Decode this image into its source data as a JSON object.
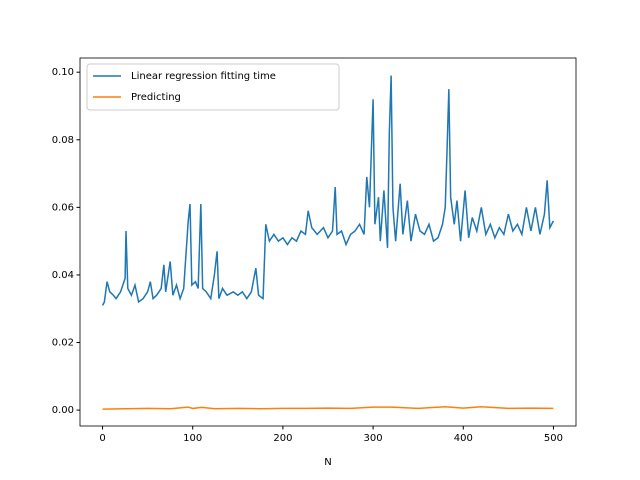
{
  "chart_data": {
    "type": "line",
    "xlabel": "N",
    "legend": "upper left",
    "xlim": [
      -25,
      525
    ],
    "xticks": [
      0,
      100,
      200,
      300,
      400,
      500
    ],
    "ylim": [
      -0.0047,
      0.1042
    ],
    "yticks": [
      {
        "value": 0,
        "label": "0.00"
      },
      {
        "value": 0.02,
        "label": "0.02"
      },
      {
        "value": 0.04,
        "label": "0.04"
      },
      {
        "value": 0.06,
        "label": "0.06"
      },
      {
        "value": 0.08,
        "label": "0.08"
      },
      {
        "value": 0.1,
        "label": "0.10"
      }
    ],
    "series": [
      {
        "name": "Linear regression fitting time",
        "color": "#1f77b4",
        "x": [
          0,
          2,
          5,
          8,
          12,
          15,
          20,
          25,
          26,
          28,
          32,
          36,
          40,
          45,
          50,
          53,
          56,
          60,
          65,
          68,
          70,
          75,
          78,
          82,
          86,
          90,
          95,
          97,
          99,
          103,
          106,
          109,
          111,
          115,
          120,
          124,
          127,
          129,
          133,
          138,
          145,
          150,
          155,
          160,
          165,
          170,
          173,
          178,
          181,
          185,
          190,
          195,
          200,
          205,
          210,
          215,
          220,
          225,
          228,
          232,
          238,
          245,
          250,
          255,
          258,
          260,
          265,
          270,
          275,
          280,
          285,
          290,
          293,
          296,
          300,
          302,
          306,
          308,
          312,
          316,
          318,
          320,
          322,
          325,
          330,
          333,
          338,
          342,
          347,
          352,
          357,
          362,
          367,
          372,
          377,
          380,
          382,
          384,
          386,
          390,
          393,
          397,
          402,
          406,
          410,
          415,
          420,
          425,
          430,
          435,
          440,
          445,
          450,
          455,
          460,
          465,
          470,
          475,
          480,
          485,
          490,
          493,
          496,
          500
        ],
        "values": [
          0.031,
          0.032,
          0.038,
          0.035,
          0.034,
          0.033,
          0.035,
          0.039,
          0.053,
          0.036,
          0.034,
          0.037,
          0.032,
          0.033,
          0.035,
          0.038,
          0.033,
          0.034,
          0.036,
          0.043,
          0.035,
          0.044,
          0.034,
          0.037,
          0.033,
          0.036,
          0.056,
          0.061,
          0.037,
          0.038,
          0.036,
          0.061,
          0.036,
          0.035,
          0.033,
          0.04,
          0.047,
          0.033,
          0.036,
          0.034,
          0.035,
          0.034,
          0.035,
          0.033,
          0.035,
          0.042,
          0.034,
          0.033,
          0.055,
          0.05,
          0.052,
          0.05,
          0.051,
          0.049,
          0.051,
          0.05,
          0.053,
          0.052,
          0.059,
          0.054,
          0.052,
          0.054,
          0.051,
          0.053,
          0.066,
          0.052,
          0.053,
          0.049,
          0.052,
          0.053,
          0.055,
          0.052,
          0.069,
          0.06,
          0.092,
          0.055,
          0.063,
          0.05,
          0.065,
          0.048,
          0.082,
          0.099,
          0.06,
          0.05,
          0.067,
          0.052,
          0.062,
          0.05,
          0.058,
          0.053,
          0.052,
          0.055,
          0.05,
          0.051,
          0.055,
          0.06,
          0.077,
          0.095,
          0.063,
          0.055,
          0.062,
          0.05,
          0.065,
          0.051,
          0.057,
          0.053,
          0.06,
          0.052,
          0.055,
          0.051,
          0.054,
          0.052,
          0.058,
          0.053,
          0.055,
          0.052,
          0.06,
          0.053,
          0.06,
          0.052,
          0.058,
          0.068,
          0.054,
          0.056
        ]
      },
      {
        "name": "Predicting",
        "color": "#ff7f0e",
        "x": [
          0,
          25,
          50,
          75,
          95,
          100,
          110,
          125,
          150,
          175,
          200,
          225,
          250,
          275,
          300,
          320,
          350,
          380,
          400,
          420,
          450,
          475,
          500
        ],
        "values": [
          0.0003,
          0.0004,
          0.0005,
          0.0004,
          0.0009,
          0.0005,
          0.0008,
          0.0004,
          0.0005,
          0.0004,
          0.0005,
          0.0005,
          0.0006,
          0.0005,
          0.0009,
          0.0009,
          0.0005,
          0.001,
          0.0006,
          0.001,
          0.0005,
          0.0006,
          0.0005
        ]
      }
    ]
  }
}
